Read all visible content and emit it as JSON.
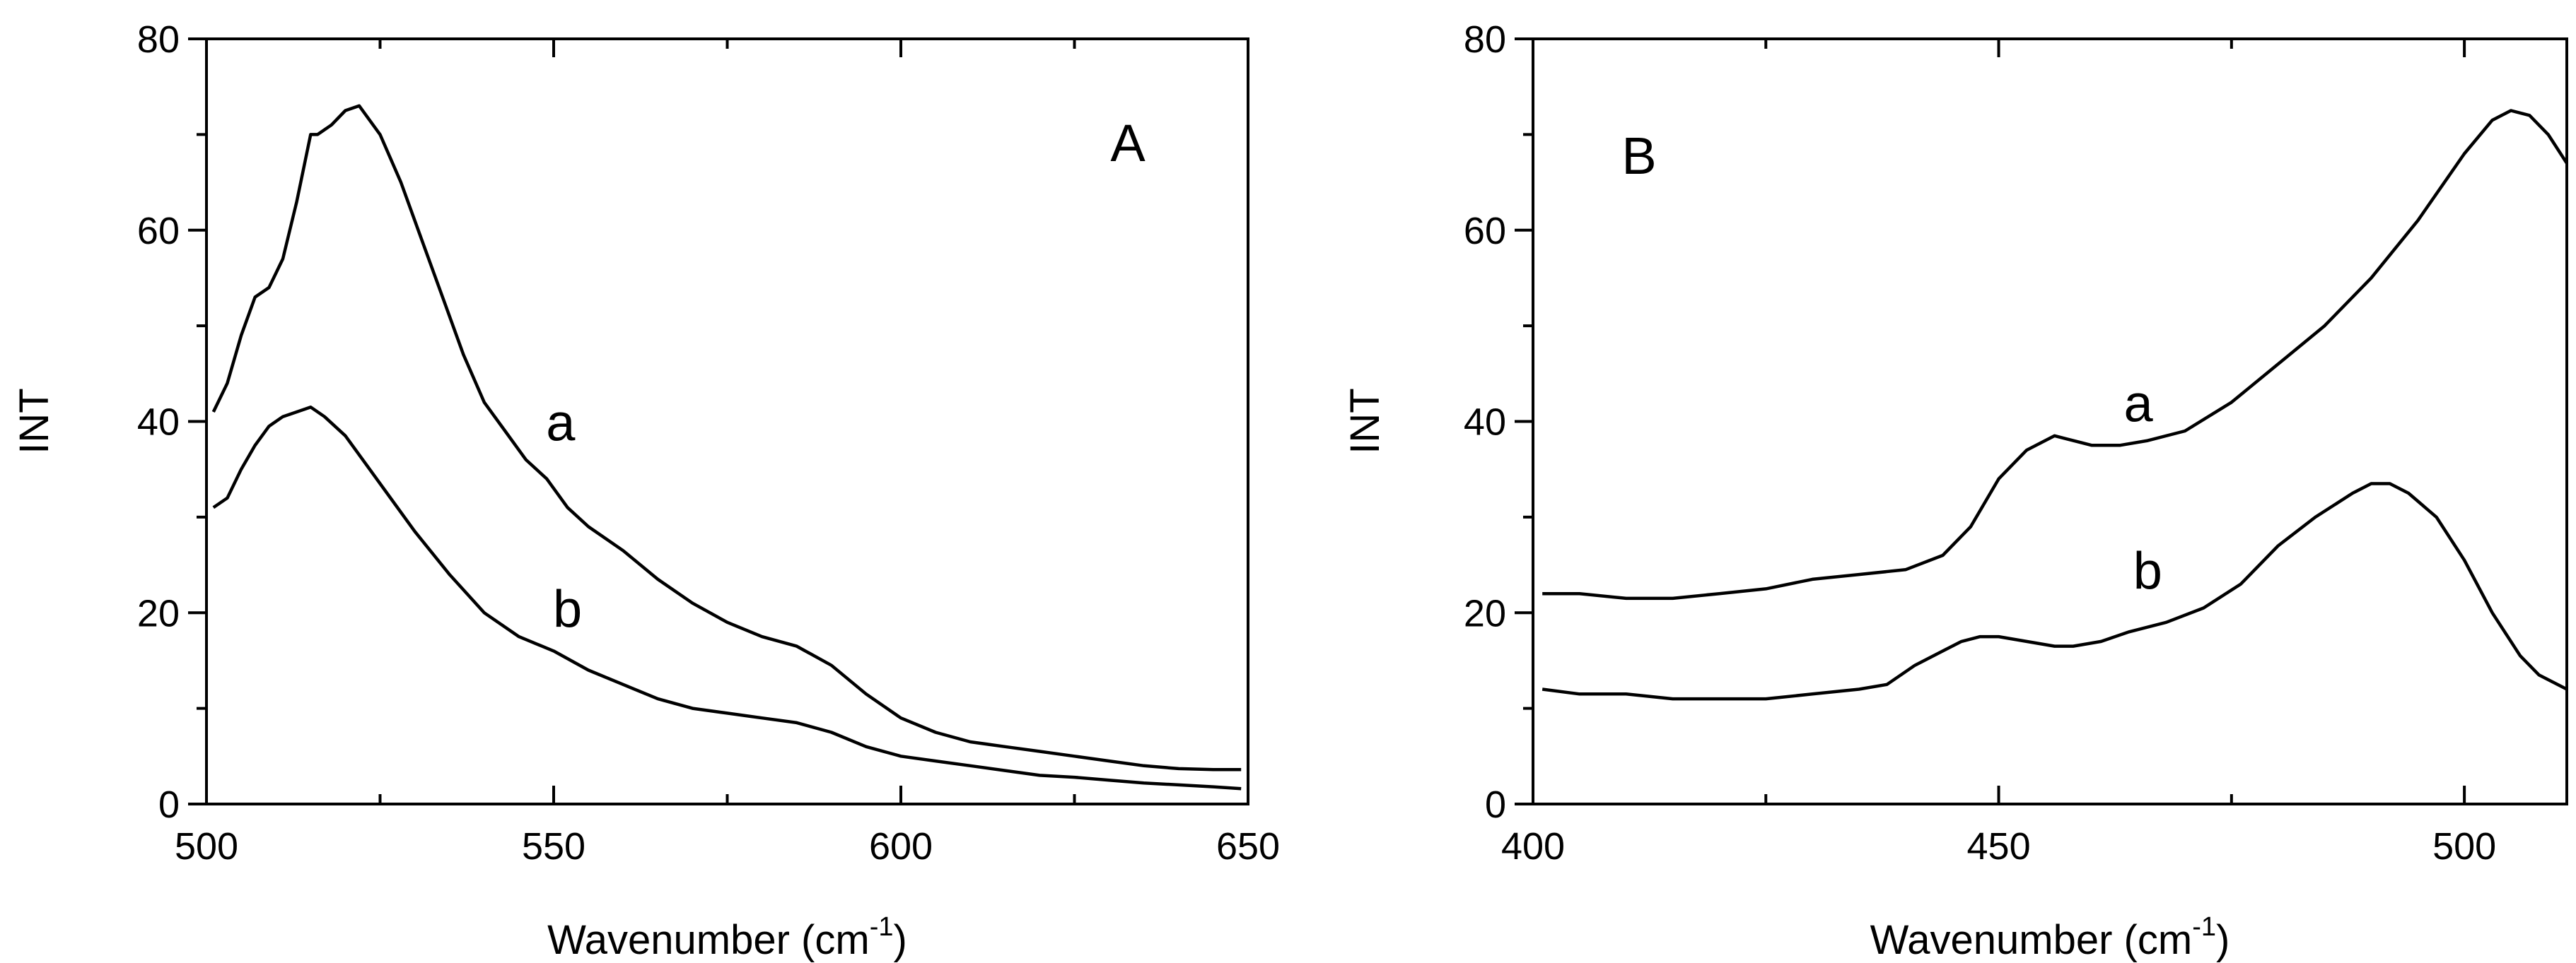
{
  "chart_data": [
    {
      "type": "line",
      "panel": "A",
      "xlabel": "Wavenumber (cm",
      "xlabel_sup": "-1",
      "xlabel_close": ")",
      "ylabel": "INT",
      "xlim": [
        500,
        650
      ],
      "ylim": [
        0,
        80
      ],
      "xticks": [
        500,
        550,
        600,
        650
      ],
      "yticks": [
        0,
        20,
        40,
        60,
        80
      ],
      "grid": false,
      "series": [
        {
          "name": "a",
          "x": [
            501,
            503,
            505,
            507,
            509,
            511,
            513,
            515,
            516,
            518,
            520,
            522,
            525,
            528,
            531,
            534,
            537,
            540,
            543,
            546,
            549,
            552,
            555,
            560,
            565,
            570,
            575,
            580,
            585,
            590,
            595,
            600,
            605,
            610,
            615,
            620,
            625,
            630,
            635,
            640,
            645,
            649
          ],
          "y": [
            41,
            44,
            49,
            53,
            54,
            57,
            63,
            70,
            70,
            71,
            72.5,
            73,
            70,
            65,
            59,
            53,
            47,
            42,
            39,
            36,
            34,
            31,
            29,
            26.5,
            23.5,
            21,
            19,
            17.5,
            16.5,
            14.5,
            11.5,
            9,
            7.5,
            6.5,
            6,
            5.5,
            5,
            4.5,
            4,
            3.7,
            3.6,
            3.6
          ],
          "label_at": [
            551,
            38
          ]
        },
        {
          "name": "b",
          "x": [
            501,
            503,
            505,
            507,
            509,
            511,
            513,
            515,
            517,
            520,
            523,
            526,
            530,
            535,
            540,
            545,
            550,
            555,
            560,
            565,
            570,
            575,
            580,
            585,
            590,
            595,
            600,
            605,
            610,
            615,
            620,
            625,
            630,
            635,
            640,
            645,
            649
          ],
          "y": [
            31,
            32,
            35,
            37.5,
            39.5,
            40.5,
            41,
            41.5,
            40.5,
            38.5,
            35.5,
            32.5,
            28.5,
            24,
            20,
            17.5,
            16,
            14,
            12.5,
            11,
            10,
            9.5,
            9,
            8.5,
            7.5,
            6,
            5,
            4.5,
            4,
            3.5,
            3,
            2.8,
            2.5,
            2.2,
            2,
            1.8,
            1.6
          ],
          "label_at": [
            552,
            18.5
          ]
        }
      ],
      "annotation": "A"
    },
    {
      "type": "line",
      "panel": "B",
      "xlabel": "Wavenumber (cm",
      "xlabel_sup": "-1",
      "xlabel_close": ")",
      "ylabel": "INT",
      "xlim": [
        400,
        511
      ],
      "ylim": [
        0,
        80
      ],
      "xticks": [
        400,
        450,
        500
      ],
      "yticks": [
        0,
        20,
        40,
        60,
        80
      ],
      "grid": false,
      "series": [
        {
          "name": "a",
          "x": [
            401,
            405,
            410,
            415,
            420,
            425,
            430,
            435,
            440,
            444,
            447,
            450,
            453,
            456,
            458,
            460,
            463,
            466,
            470,
            475,
            480,
            485,
            490,
            495,
            500,
            503,
            505,
            507,
            509,
            511
          ],
          "y": [
            22,
            22,
            21.5,
            21.5,
            22,
            22.5,
            23.5,
            24,
            24.5,
            26,
            29,
            34,
            37,
            38.5,
            38,
            37.5,
            37.5,
            38,
            39,
            42,
            46,
            50,
            55,
            61,
            68,
            71.5,
            72.5,
            72,
            70,
            67
          ],
          "label_at": [
            465,
            40
          ]
        },
        {
          "name": "b",
          "x": [
            401,
            405,
            410,
            415,
            420,
            425,
            430,
            435,
            438,
            441,
            444,
            446,
            448,
            450,
            453,
            456,
            458,
            461,
            464,
            468,
            472,
            476,
            480,
            484,
            488,
            490,
            492,
            494,
            497,
            500,
            503,
            506,
            508,
            511
          ],
          "y": [
            12,
            11.5,
            11.5,
            11,
            11,
            11,
            11.5,
            12,
            12.5,
            14.5,
            16,
            17,
            17.5,
            17.5,
            17,
            16.5,
            16.5,
            17,
            18,
            19,
            20.5,
            23,
            27,
            30,
            32.5,
            33.5,
            33.5,
            32.5,
            30,
            25.5,
            20,
            15.5,
            13.5,
            12
          ],
          "label_at": [
            466,
            22.5
          ]
        }
      ],
      "annotation": "B"
    }
  ]
}
